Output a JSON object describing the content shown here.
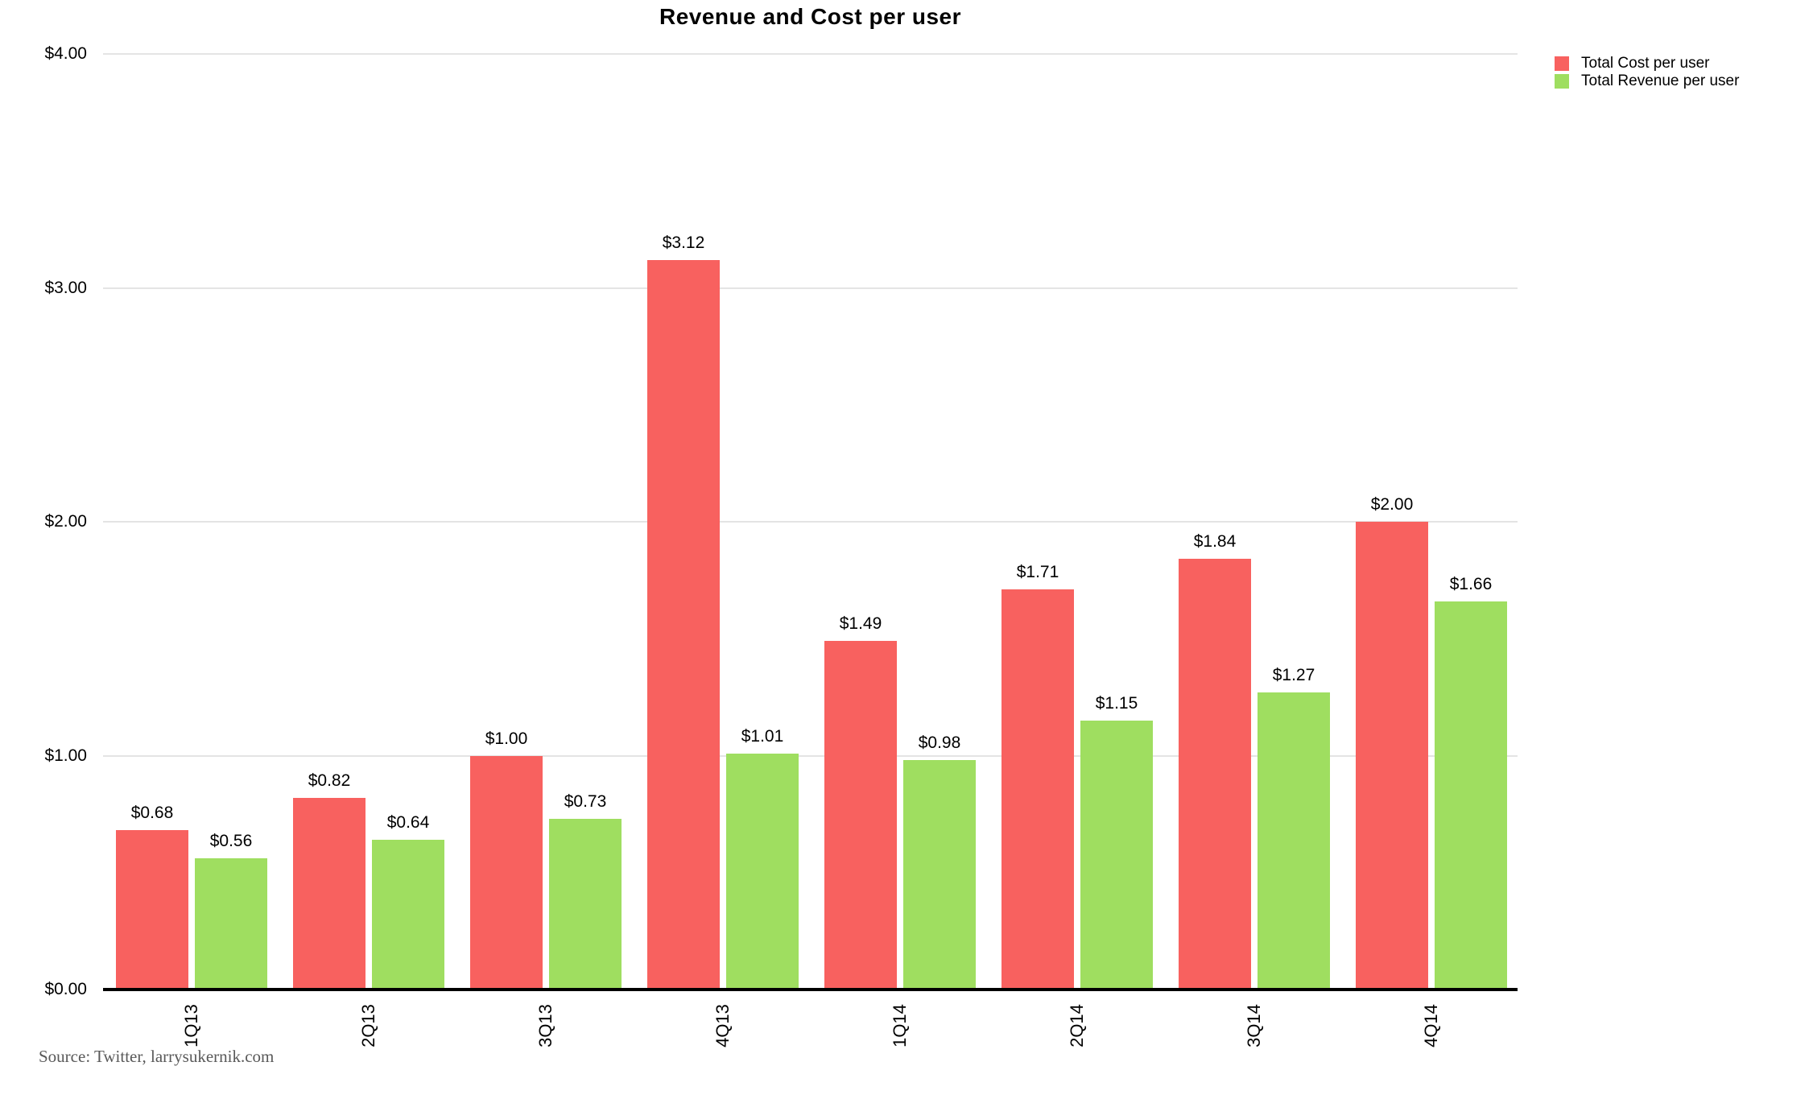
{
  "title": "Revenue and Cost per user",
  "source_note": "Source: Twitter, larrysukernik.com",
  "colors": {
    "cost": "#F8615F",
    "revenue": "#9FDE60",
    "gridline": "#E4E4E4",
    "axis": "#000000",
    "source_text": "#595959"
  },
  "legend": {
    "items": [
      {
        "label": "Total Cost per user",
        "color": "#F8615F"
      },
      {
        "label": "Total Revenue per user",
        "color": "#9FDE60"
      }
    ]
  },
  "y_axis": {
    "tick_labels": [
      "$4.00",
      "$3.00",
      "$2.00",
      "$1.00",
      "$0.00"
    ],
    "tick_values": [
      4,
      3,
      2,
      1,
      0
    ]
  },
  "x_axis": {
    "tick_labels": [
      "1Q13",
      "2Q13",
      "3Q13",
      "4Q13",
      "1Q14",
      "2Q14",
      "3Q14",
      "4Q14"
    ]
  },
  "chart_data": {
    "type": "bar",
    "title": "Revenue and Cost per user",
    "xlabel": "",
    "ylabel": "",
    "categories": [
      "1Q13",
      "2Q13",
      "3Q13",
      "4Q13",
      "1Q14",
      "2Q14",
      "3Q14",
      "4Q14"
    ],
    "series": [
      {
        "name": "Total Cost per user",
        "color": "#F8615F",
        "values": [
          0.68,
          0.82,
          1.0,
          3.12,
          1.49,
          1.71,
          1.84,
          2.0
        ],
        "value_labels": [
          "$0.68",
          "$0.82",
          "$1.00",
          "$3.12",
          "$1.49",
          "$1.71",
          "$1.84",
          "$2.00"
        ]
      },
      {
        "name": "Total Revenue per user",
        "color": "#9FDE60",
        "values": [
          0.56,
          0.64,
          0.73,
          1.01,
          0.98,
          1.15,
          1.27,
          1.66
        ],
        "value_labels": [
          "$0.56",
          "$0.64",
          "$0.73",
          "$1.01",
          "$0.98",
          "$1.15",
          "$1.27",
          "$1.66"
        ]
      }
    ],
    "ylim": [
      0,
      4
    ],
    "ytick_step": 1,
    "grid": true,
    "legend_position": "top-right",
    "bar_value_labels_shown": true
  }
}
